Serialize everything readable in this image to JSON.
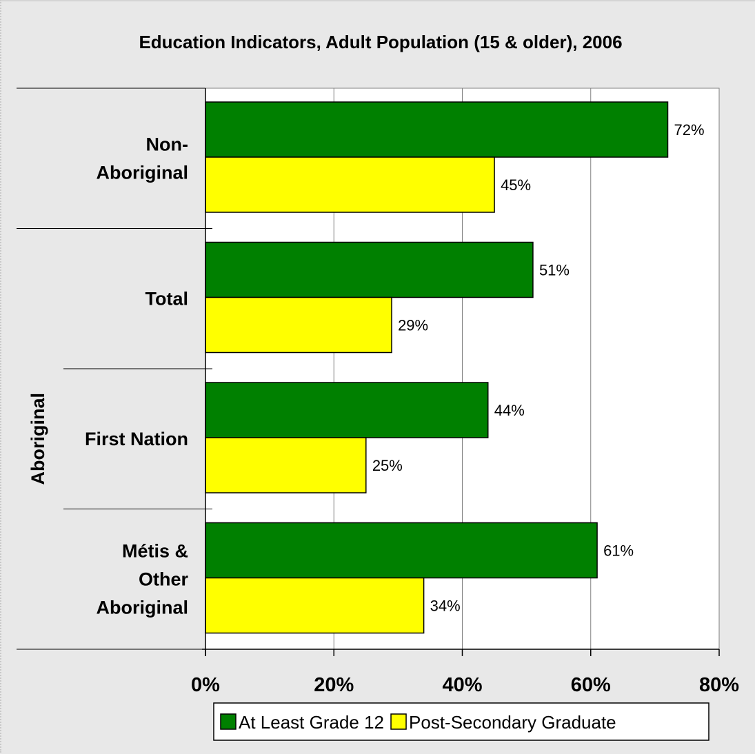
{
  "chart_data": {
    "type": "bar",
    "orientation": "horizontal",
    "title": "Education Indicators, Adult Population (15 & older), 2006",
    "categories": [
      "Non-Aboriginal",
      "Total",
      "First Nation",
      "Métis & Other Aboriginal"
    ],
    "category_label_lines": [
      [
        "Non-",
        "Aboriginal"
      ],
      [
        "Total"
      ],
      [
        "First Nation"
      ],
      [
        "Métis &",
        "Other",
        "Aboriginal"
      ]
    ],
    "group_label": "Aboriginal",
    "series": [
      {
        "name": "At Least Grade 12",
        "color": "#008000",
        "values": [
          72,
          51,
          44,
          61
        ],
        "labels": [
          "72%",
          "51%",
          "44%",
          "61%"
        ]
      },
      {
        "name": "Post-Secondary Graduate",
        "color": "#ffff00",
        "values": [
          45,
          29,
          25,
          34
        ],
        "labels": [
          "45%",
          "29%",
          "25%",
          "34%"
        ]
      }
    ],
    "xlim": [
      0,
      80
    ],
    "xticks": [
      0,
      20,
      40,
      60,
      80
    ],
    "xtick_labels": [
      "0%",
      "20%",
      "40%",
      "60%",
      "80%"
    ],
    "grid": true,
    "legend_position": "bottom-right",
    "plot_background": "#ffffff",
    "chart_background": "#e8e8e8"
  }
}
